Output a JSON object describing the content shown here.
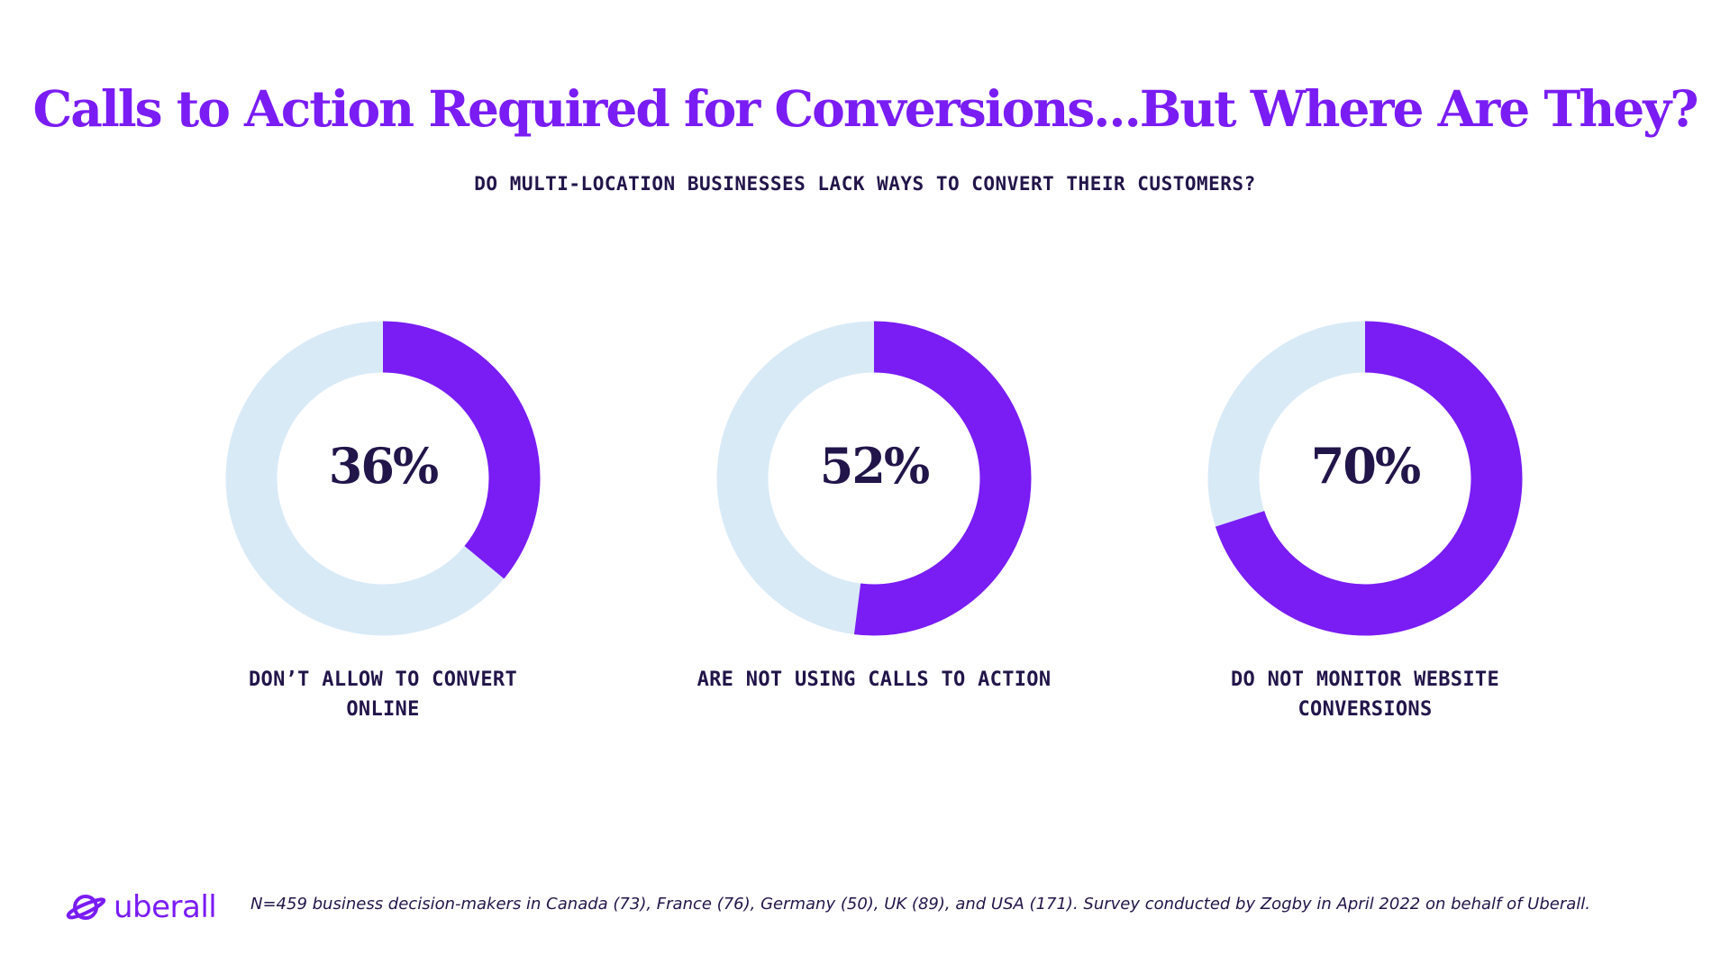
{
  "header": {
    "title": "Calls to Action Required for Conversions...But Where Are They?",
    "subtitle": "DO MULTI-LOCATION BUSINESSES LACK WAYS TO CONVERT THEIR CUSTOMERS?"
  },
  "colors": {
    "accent": "#7a1cf4",
    "track": "#d9eaf7",
    "text": "#22154a"
  },
  "chart_data": {
    "type": "pie",
    "variant": "donut",
    "items": [
      {
        "value": 36,
        "value_label": "36%",
        "label_lines": [
          "DON’T ALLOW TO CONVERT",
          "ONLINE"
        ]
      },
      {
        "value": 52,
        "value_label": "52%",
        "label_lines": [
          "ARE NOT USING CALLS TO ACTION"
        ]
      },
      {
        "value": 70,
        "value_label": "70%",
        "label_lines": [
          "DO NOT MONITOR WEBSITE",
          "CONVERSIONS"
        ]
      }
    ]
  },
  "footer": {
    "logo_text": "uberall",
    "logo_icon": "planet-ring-icon",
    "note": "N=459 business decision-makers in Canada (73), France (76), Germany (50), UK (89), and USA (171). Survey conducted by Zogby in April 2022 on behalf of Uberall."
  }
}
